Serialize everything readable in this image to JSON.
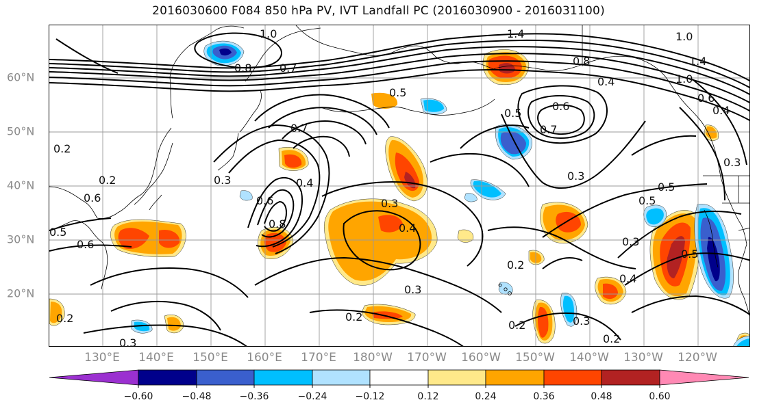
{
  "title": "2016030600 F084 850 hPa PV, IVT Landfall PC (2016030900 - 2016031100)",
  "y_axis_labels": [
    "60°N",
    "50°N",
    "40°N",
    "30°N",
    "20°N"
  ],
  "x_axis_labels": [
    "130°E",
    "140°E",
    "150°E",
    "160°E",
    "170°E",
    "180°W",
    "170°W",
    "160°W",
    "150°W",
    "140°W",
    "130°W",
    "120°W"
  ],
  "colorbar": {
    "tick_labels": [
      "−0.60",
      "−0.48",
      "−0.36",
      "−0.24",
      "−0.12",
      "0.12",
      "0.24",
      "0.36",
      "0.48",
      "0.60"
    ],
    "colors": [
      "#9b30d0",
      "#00008b",
      "#3a5fcd",
      "#00bfff",
      "#b0e2ff",
      "#ffffff",
      "#ffe98a",
      "#ffa500",
      "#ff4500",
      "#b22222",
      "#ff89b4"
    ]
  },
  "contour_labels": [
    "1.0",
    "1.4",
    "1.0",
    "1.4",
    "1.0",
    "0.6",
    "0.8",
    "0.7",
    "0.8",
    "0.5",
    "0.4",
    "0.5",
    "0.6",
    "0.7",
    "0.7",
    "0.2",
    "0.2",
    "0.3",
    "0.6",
    "0.8",
    "0.5",
    "0.3",
    "0.4",
    "0.3",
    "0.3",
    "0.5",
    "0.6",
    "0.4",
    "0.5",
    "0.2",
    "0.3",
    "0.3",
    "0.2",
    "0.2",
    "0.2",
    "0.3",
    "0.3",
    "0.4",
    "0.5",
    "0.4",
    "0.2",
    "0.6"
  ],
  "colors": {
    "contour": "#000000",
    "coast": "#000000",
    "grid": "#9a9a9a",
    "axis_label": "#8a8a8a"
  }
}
